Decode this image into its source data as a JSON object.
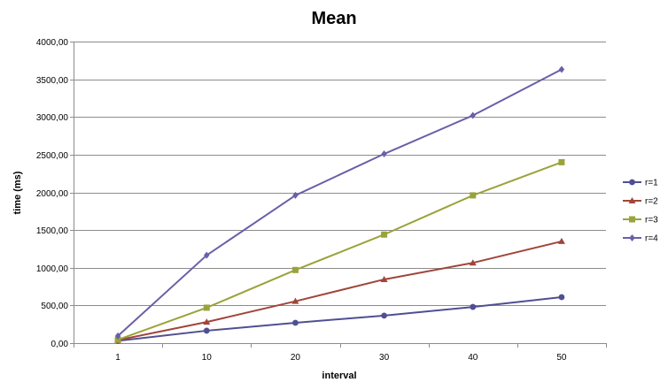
{
  "chart_data": {
    "type": "line",
    "title": "Mean",
    "xlabel": "interval",
    "ylabel": "time (ms)",
    "categories": [
      "1",
      "10",
      "20",
      "30",
      "40",
      "50"
    ],
    "ylim": [
      0,
      4000
    ],
    "yticks": [
      "0,00",
      "500,00",
      "1000,00",
      "1500,00",
      "2000,00",
      "2500,00",
      "3000,00",
      "3500,00",
      "4000,00"
    ],
    "grid": true,
    "legend_position": "right",
    "series": [
      {
        "name": "r=1",
        "color": "#4F4F93",
        "marker": "circle",
        "values": [
          30,
          165,
          270,
          365,
          480,
          610
        ]
      },
      {
        "name": "r=2",
        "color": "#A0453A",
        "marker": "triangle",
        "values": [
          40,
          280,
          555,
          845,
          1065,
          1350
        ]
      },
      {
        "name": "r=3",
        "color": "#9AA33A",
        "marker": "square",
        "values": [
          45,
          470,
          970,
          1440,
          1960,
          2400
        ]
      },
      {
        "name": "r=4",
        "color": "#6A5FA8",
        "marker": "diamond",
        "values": [
          95,
          1165,
          1960,
          2510,
          3020,
          3630
        ]
      }
    ]
  }
}
